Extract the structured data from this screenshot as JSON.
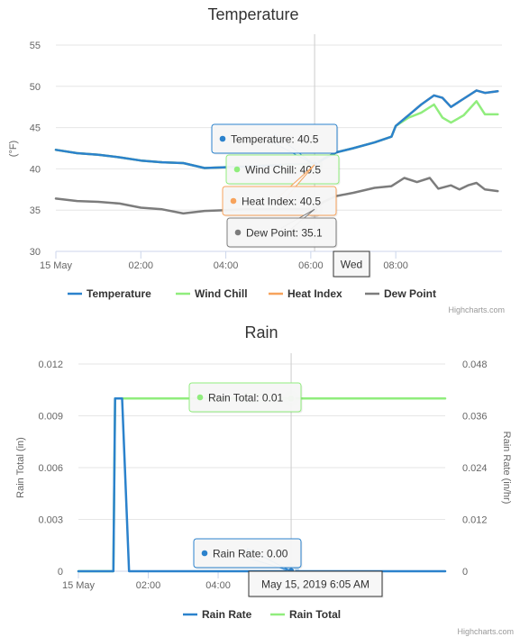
{
  "credits": "Highcharts.com",
  "chart_data": [
    {
      "type": "line",
      "title": "Temperature",
      "ylabel": "(°F)",
      "ylim": [
        30,
        55
      ],
      "yticks": [
        30,
        35,
        40,
        45,
        50,
        55
      ],
      "xlim": [
        0,
        10.5
      ],
      "xticks": [
        {
          "x": 0,
          "label": "15 May"
        },
        {
          "x": 2,
          "label": "02:00"
        },
        {
          "x": 4,
          "label": "04:00"
        },
        {
          "x": 6,
          "label": "06:00"
        },
        {
          "x": 8,
          "label": "08:00"
        }
      ],
      "legend_position": "bottom",
      "grid": true,
      "series": [
        {
          "name": "Temperature",
          "color": "#2b82cc",
          "points": [
            [
              0,
              42.3
            ],
            [
              0.5,
              41.9
            ],
            [
              1,
              41.7
            ],
            [
              1.5,
              41.4
            ],
            [
              2,
              41.0
            ],
            [
              2.5,
              40.8
            ],
            [
              3,
              40.7
            ],
            [
              3.5,
              40.1
            ],
            [
              4,
              40.2
            ],
            [
              4.5,
              40.3
            ],
            [
              5,
              40.4
            ],
            [
              5.5,
              40.5
            ],
            [
              6.09,
              40.5
            ],
            [
              6.3,
              41.2
            ],
            [
              6.6,
              42.0
            ],
            [
              7,
              42.5
            ],
            [
              7.5,
              43.2
            ],
            [
              7.9,
              43.9
            ],
            [
              8,
              45.2
            ],
            [
              8.3,
              46.5
            ],
            [
              8.6,
              47.8
            ],
            [
              8.9,
              48.9
            ],
            [
              9.1,
              48.6
            ],
            [
              9.3,
              47.5
            ],
            [
              9.6,
              48.5
            ],
            [
              9.9,
              49.5
            ],
            [
              10.1,
              49.2
            ],
            [
              10.4,
              49.4
            ]
          ]
        },
        {
          "name": "Wind Chill",
          "color": "#90ed7d",
          "points": [
            [
              0,
              42.3
            ],
            [
              0.5,
              41.9
            ],
            [
              1,
              41.7
            ],
            [
              1.5,
              41.4
            ],
            [
              2,
              41.0
            ],
            [
              2.5,
              40.8
            ],
            [
              3,
              40.7
            ],
            [
              3.5,
              40.1
            ],
            [
              4,
              40.2
            ],
            [
              4.5,
              40.3
            ],
            [
              5,
              40.4
            ],
            [
              5.5,
              40.5
            ],
            [
              6.09,
              40.5
            ],
            [
              6.3,
              41.2
            ],
            [
              6.6,
              42.0
            ],
            [
              7,
              42.5
            ],
            [
              7.5,
              43.2
            ],
            [
              7.9,
              43.9
            ],
            [
              8,
              45.2
            ],
            [
              8.3,
              46.2
            ],
            [
              8.6,
              46.8
            ],
            [
              8.9,
              47.8
            ],
            [
              9.1,
              46.2
            ],
            [
              9.3,
              45.6
            ],
            [
              9.6,
              46.5
            ],
            [
              9.9,
              48.2
            ],
            [
              10.1,
              46.6
            ],
            [
              10.4,
              46.6
            ]
          ]
        },
        {
          "name": "Heat Index",
          "color": "#f7a35c",
          "points": [
            [
              0,
              42.3
            ],
            [
              0.5,
              41.9
            ],
            [
              1,
              41.7
            ],
            [
              1.5,
              41.4
            ],
            [
              2,
              41.0
            ],
            [
              2.5,
              40.8
            ],
            [
              3,
              40.7
            ],
            [
              3.5,
              40.1
            ],
            [
              4,
              40.2
            ],
            [
              4.5,
              40.3
            ],
            [
              5,
              40.4
            ],
            [
              5.5,
              40.5
            ],
            [
              6.09,
              40.5
            ],
            [
              6.3,
              41.2
            ],
            [
              6.6,
              42.0
            ],
            [
              7,
              42.5
            ],
            [
              7.5,
              43.2
            ],
            [
              7.9,
              43.9
            ],
            [
              8,
              45.2
            ],
            [
              8.3,
              46.5
            ],
            [
              8.6,
              47.8
            ],
            [
              8.9,
              48.9
            ],
            [
              9.1,
              48.6
            ],
            [
              9.3,
              47.5
            ],
            [
              9.6,
              48.5
            ],
            [
              9.9,
              49.5
            ],
            [
              10.1,
              49.2
            ],
            [
              10.4,
              49.4
            ]
          ]
        },
        {
          "name": "Dew Point",
          "color": "#7c7c7c",
          "points": [
            [
              0,
              36.4
            ],
            [
              0.5,
              36.1
            ],
            [
              1,
              36.0
            ],
            [
              1.5,
              35.8
            ],
            [
              2,
              35.3
            ],
            [
              2.5,
              35.1
            ],
            [
              3,
              34.6
            ],
            [
              3.5,
              34.9
            ],
            [
              4,
              35.0
            ],
            [
              4.5,
              35.1
            ],
            [
              5,
              35.1
            ],
            [
              5.5,
              35.1
            ],
            [
              6.09,
              35.1
            ],
            [
              6.3,
              36.0
            ],
            [
              6.6,
              36.7
            ],
            [
              7,
              37.1
            ],
            [
              7.5,
              37.7
            ],
            [
              7.9,
              37.9
            ],
            [
              8.2,
              38.9
            ],
            [
              8.5,
              38.4
            ],
            [
              8.8,
              38.9
            ],
            [
              9.0,
              37.6
            ],
            [
              9.3,
              38.0
            ],
            [
              9.5,
              37.5
            ],
            [
              9.7,
              38.0
            ],
            [
              9.9,
              38.3
            ],
            [
              10.1,
              37.5
            ],
            [
              10.4,
              37.3
            ]
          ]
        }
      ],
      "hover_x": 6.09,
      "tooltips": [
        {
          "label": "Temperature: 40.5",
          "color": "#2b82cc"
        },
        {
          "label": "Wind Chill: 40.5",
          "color": "#90ed7d"
        },
        {
          "label": "Heat Index: 40.5",
          "color": "#f7a35c"
        },
        {
          "label": "Dew Point: 35.1",
          "color": "#7c7c7c"
        }
      ],
      "x_tooltip": "Wed"
    },
    {
      "type": "line",
      "title": "Rain",
      "ylabel": "Rain Total (in)",
      "ylim": [
        0,
        0.012
      ],
      "yticks": [
        0,
        0.003,
        0.006,
        0.009,
        0.012
      ],
      "ytick_labels": [
        "0",
        "0.003",
        "0.006",
        "0.009",
        "0.012"
      ],
      "y2label": "Rain Rate (in/hr)",
      "y2lim": [
        0,
        0.048
      ],
      "y2ticks": [
        0,
        0.012,
        0.024,
        0.036,
        0.048
      ],
      "y2tick_labels": [
        "0",
        "0.012",
        "0.024",
        "0.036",
        "0.048"
      ],
      "xlim": [
        0,
        10.5
      ],
      "xticks": [
        {
          "x": 0,
          "label": "15 May"
        },
        {
          "x": 2,
          "label": "02:00"
        },
        {
          "x": 4,
          "label": "04:00"
        },
        {
          "x": 6,
          "label": "06:00"
        },
        {
          "x": 8,
          "label": "08:00"
        }
      ],
      "legend_position": "bottom",
      "grid": true,
      "series": [
        {
          "name": "Rain Rate",
          "color": "#2b82cc",
          "axis": "right",
          "points": [
            [
              0,
              0
            ],
            [
              1.0,
              0
            ],
            [
              1.05,
              0.04
            ],
            [
              1.25,
              0.04
            ],
            [
              1.45,
              0
            ],
            [
              6.09,
              0
            ],
            [
              10.5,
              0
            ]
          ]
        },
        {
          "name": "Rain Total",
          "color": "#90ed7d",
          "axis": "left",
          "points": [
            [
              0,
              0
            ],
            [
              1.0,
              0
            ],
            [
              1.05,
              0.01
            ],
            [
              6.09,
              0.01
            ],
            [
              10.5,
              0.01
            ]
          ]
        }
      ],
      "hover_x": 6.09,
      "tooltips": [
        {
          "label": "Rain Total: 0.01",
          "color": "#90ed7d"
        },
        {
          "label": "Rain Rate: 0.00",
          "color": "#2b82cc"
        }
      ],
      "x_tooltip": "May 15, 2019 6:05 AM"
    }
  ]
}
